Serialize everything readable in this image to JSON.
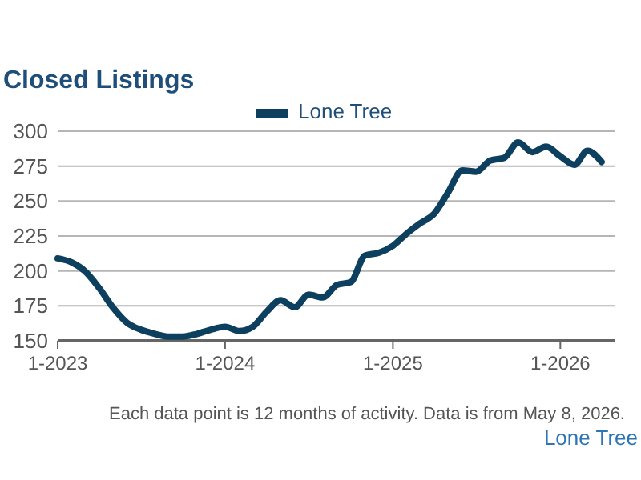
{
  "chart_data": {
    "type": "line",
    "title": "Closed Listings",
    "x": [
      "2023-01",
      "2023-02",
      "2023-03",
      "2023-04",
      "2023-05",
      "2023-06",
      "2023-07",
      "2023-08",
      "2023-09",
      "2023-10",
      "2023-11",
      "2023-12",
      "2024-01",
      "2024-02",
      "2024-03",
      "2024-04",
      "2024-05",
      "2024-06",
      "2024-07",
      "2024-08",
      "2024-09",
      "2024-10",
      "2024-11",
      "2024-12",
      "2025-01",
      "2025-02",
      "2025-03",
      "2025-04",
      "2025-05",
      "2025-06",
      "2025-07",
      "2025-08",
      "2025-09",
      "2025-10",
      "2025-11",
      "2025-12",
      "2026-01",
      "2026-02",
      "2026-03",
      "2026-04"
    ],
    "series": [
      {
        "name": "Lone Tree",
        "color": "#0d3f5f",
        "values": [
          209,
          206,
          200,
          188,
          174,
          163,
          158,
          155,
          153,
          153,
          155,
          158,
          160,
          157,
          160,
          171,
          179,
          174,
          183,
          181,
          190,
          192,
          211,
          213,
          218,
          227,
          234,
          241,
          256,
          272,
          271,
          279,
          281,
          292,
          285,
          289,
          282,
          276,
          286,
          278
        ]
      }
    ],
    "xlim": [
      "2023-01",
      "2026-05"
    ],
    "xticks": [
      {
        "value": "2023-01",
        "label": "1-2023"
      },
      {
        "value": "2024-01",
        "label": "1-2024"
      },
      {
        "value": "2025-01",
        "label": "1-2025"
      },
      {
        "value": "2026-01",
        "label": "1-2026"
      }
    ],
    "ylim": [
      150,
      300
    ],
    "yticks": [
      150,
      175,
      200,
      225,
      250,
      275,
      300
    ],
    "grid": "y",
    "legend": "top",
    "line_style": "solid",
    "marker": "none",
    "annotations": [
      "Each data point is 12 months of activity. Data is from May 8, 2026.",
      "Lone Tree"
    ]
  }
}
